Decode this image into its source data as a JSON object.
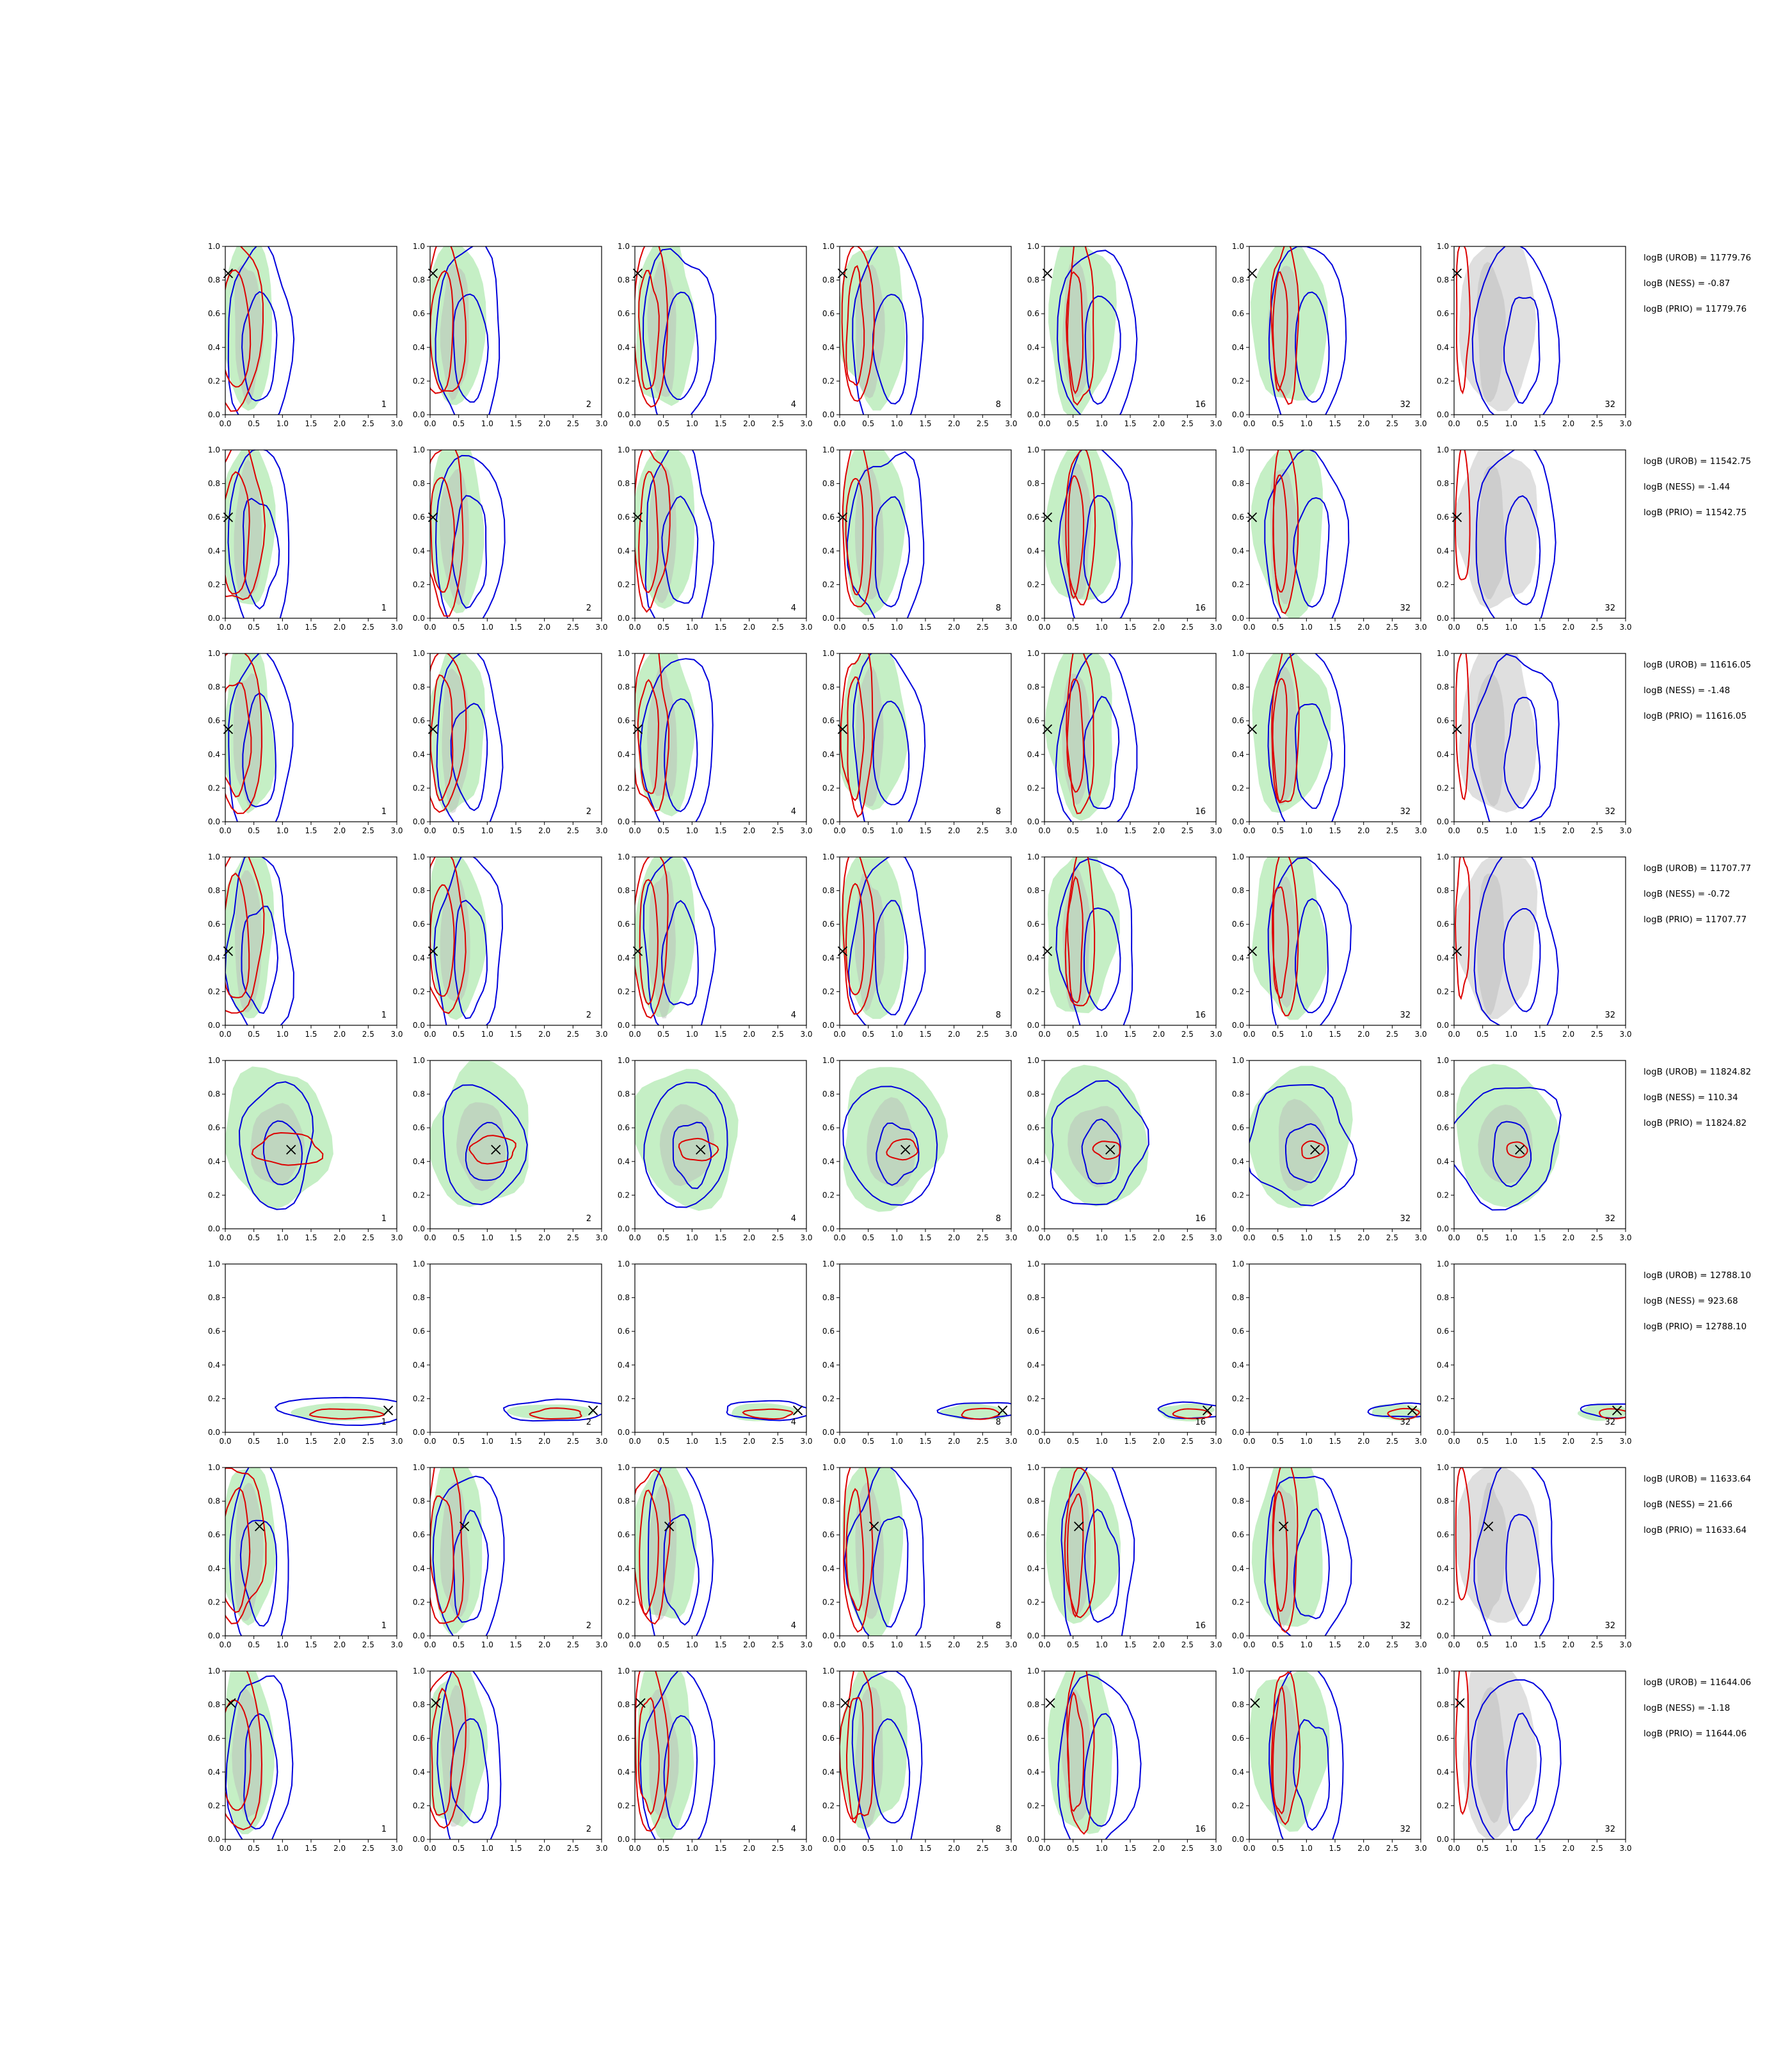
{
  "chart_data": {
    "type": "contour_grid",
    "rows": 8,
    "columns": 7,
    "x_axis": {
      "range": [
        0.0,
        3.0
      ],
      "ticks": [
        "0.0",
        "0.5",
        "1.0",
        "1.5",
        "2.0",
        "2.5",
        "3.0"
      ]
    },
    "y_axis": {
      "range": [
        0.0,
        1.0
      ],
      "ticks": [
        "0.0",
        "0.2",
        "0.4",
        "0.6",
        "0.8",
        "1.0"
      ]
    },
    "column_labels": [
      "1",
      "2",
      "4",
      "8",
      "16",
      "32",
      "32"
    ],
    "colors": {
      "blue": "#0000dd",
      "red": "#dd0000",
      "green": "#7fdc7f",
      "gray": "#b9b9b9",
      "marker": "#000000"
    },
    "rows_data": [
      {
        "truth": [
          0.05,
          0.84
        ],
        "stats": [
          "logB (UROB) = 11779.76",
          "logB (NESS) = -0.87",
          "logB (PRIO) = 11779.76"
        ]
      },
      {
        "truth": [
          0.05,
          0.6
        ],
        "stats": [
          "logB (UROB) = 11542.75",
          "logB (NESS) = -1.44",
          "logB (PRIO) = 11542.75"
        ]
      },
      {
        "truth": [
          0.05,
          0.55
        ],
        "stats": [
          "logB (UROB) = 11616.05",
          "logB (NESS) = -1.48",
          "logB (PRIO) = 11616.05"
        ]
      },
      {
        "truth": [
          0.05,
          0.44
        ],
        "stats": [
          "logB (UROB) = 11707.77",
          "logB (NESS) = -0.72",
          "logB (PRIO) = 11707.77"
        ]
      },
      {
        "truth": [
          1.15,
          0.47
        ],
        "stats": [
          "logB (UROB) = 11824.82",
          "logB (NESS) = 110.34",
          "logB (PRIO) = 11824.82"
        ]
      },
      {
        "truth": [
          2.85,
          0.13
        ],
        "stats": [
          "logB (UROB) = 12788.10",
          "logB (NESS) = 923.68",
          "logB (PRIO) = 12788.10"
        ]
      },
      {
        "truth": [
          0.6,
          0.65
        ],
        "stats": [
          "logB (UROB) = 11633.64",
          "logB (NESS) = 21.66",
          "logB (PRIO) = 11633.64"
        ]
      },
      {
        "truth": [
          0.1,
          0.81
        ],
        "stats": [
          "logB (UROB) = 11644.06",
          "logB (NESS) = -1.18",
          "logB (PRIO) = 11644.06"
        ]
      }
    ]
  }
}
